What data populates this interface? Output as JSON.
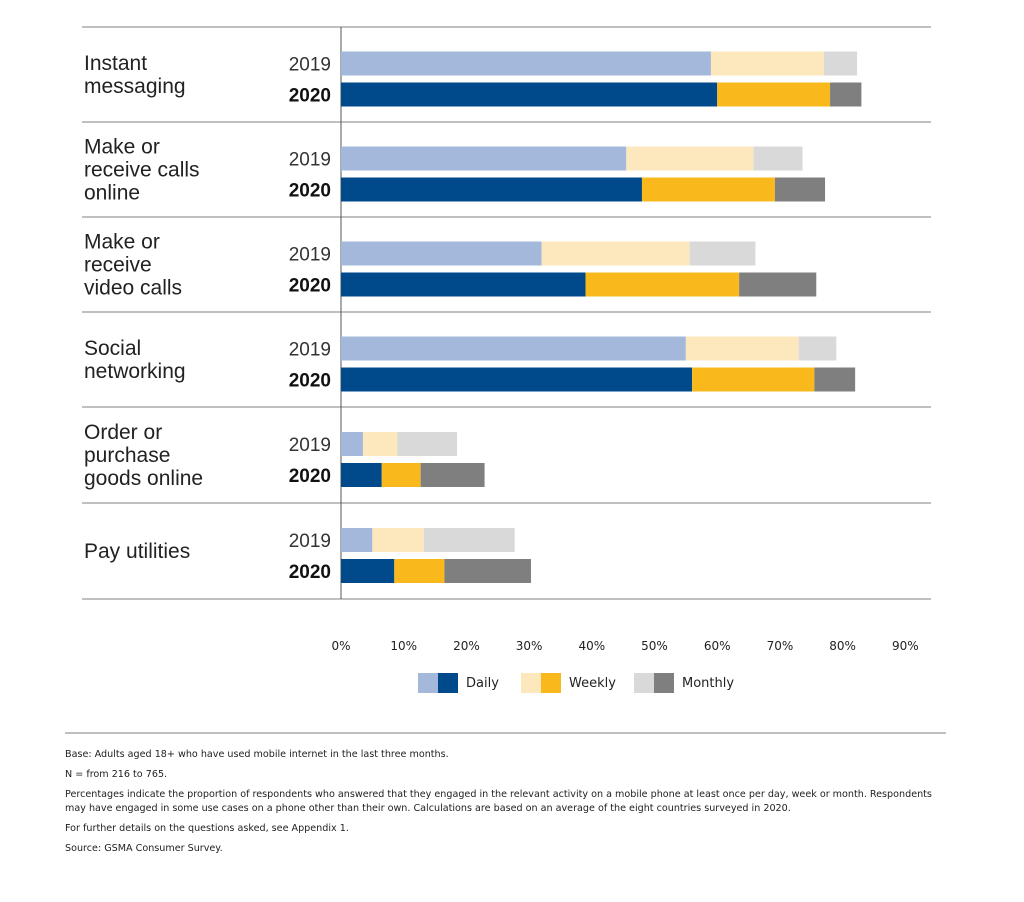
{
  "chart_data": {
    "type": "bar",
    "orientation": "horizontal",
    "stacked": true,
    "xlim": [
      0,
      90
    ],
    "x_ticks": [
      "0%",
      "10%",
      "20%",
      "30%",
      "40%",
      "50%",
      "60%",
      "70%",
      "80%",
      "90%"
    ],
    "x_tick_values": [
      0,
      10,
      20,
      30,
      40,
      50,
      60,
      70,
      80,
      90
    ],
    "year_labels": [
      "2019",
      "2020"
    ],
    "stack_order": [
      "Daily",
      "Weekly",
      "Monthly"
    ],
    "legend": {
      "position": "bottom",
      "entries": [
        {
          "label": "Daily",
          "color_2019": "#a3b8da",
          "color_2020": "#004a8c"
        },
        {
          "label": "Weekly",
          "color_2019": "#fde8bd",
          "color_2020": "#f9b91c"
        },
        {
          "label": "Monthly",
          "color_2019": "#d9d9d9",
          "color_2020": "#7f7f7f"
        }
      ]
    },
    "groups": [
      {
        "label": [
          "Instant",
          "messaging"
        ],
        "bars": [
          {
            "year": "2019",
            "values": [
              59,
              18,
              5.3
            ]
          },
          {
            "year": "2020",
            "values": [
              60,
              18,
              5
            ]
          }
        ]
      },
      {
        "label": [
          "Make or",
          "receive calls",
          "online"
        ],
        "bars": [
          {
            "year": "2019",
            "values": [
              45.5,
              20.3,
              7.8
            ]
          },
          {
            "year": "2020",
            "values": [
              48,
              21.2,
              8
            ]
          }
        ]
      },
      {
        "label": [
          "Make or",
          "receive",
          "video calls"
        ],
        "bars": [
          {
            "year": "2019",
            "values": [
              32,
              23.6,
              10.5
            ]
          },
          {
            "year": "2020",
            "values": [
              39,
              24.5,
              12.3
            ]
          }
        ]
      },
      {
        "label": [
          "Social",
          "networking"
        ],
        "bars": [
          {
            "year": "2019",
            "values": [
              55,
              18,
              6
            ]
          },
          {
            "year": "2020",
            "values": [
              56,
              19.5,
              6.5
            ]
          }
        ]
      },
      {
        "label": [
          "Order or",
          "purchase",
          "goods online"
        ],
        "bars": [
          {
            "year": "2019",
            "values": [
              3.5,
              5.5,
              9.5
            ]
          },
          {
            "year": "2020",
            "values": [
              6.5,
              6.2,
              10.2
            ]
          }
        ]
      },
      {
        "label": [
          "Pay utilities"
        ],
        "bars": [
          {
            "year": "2019",
            "values": [
              5,
              8.2,
              14.5
            ]
          },
          {
            "year": "2020",
            "values": [
              8.5,
              8,
              13.8
            ]
          }
        ]
      }
    ]
  },
  "notes": {
    "base": "Base: Adults aged 18+ who have used mobile internet in the last three months.",
    "n": "N = from 216 to 765.",
    "percentages": "Percentages indicate the proportion of respondents who answered that they engaged in the relevant activity on a mobile phone at least once per day, week or month. Respondents may have engaged in some use cases on a phone other than their own. Calculations are based on an average of the eight countries surveyed in 2020.",
    "details": "For further details on the questions asked, see Appendix 1.",
    "source": "Source: GSMA Consumer Survey."
  }
}
